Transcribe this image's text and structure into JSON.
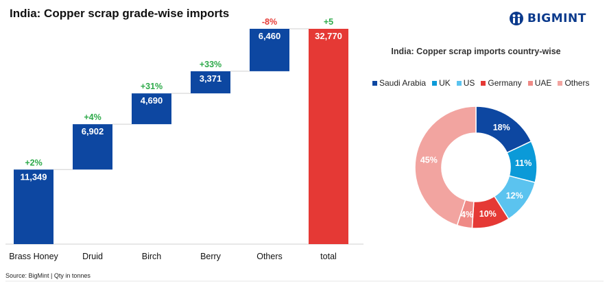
{
  "title": "India: Copper scrap grade-wise imports",
  "logo": {
    "text": "BIGMINT",
    "icon": "bigmint-logo-icon",
    "color": "#0b3a8c"
  },
  "source": "Source: BigMint | Qty in tonnes",
  "chart_data": [
    {
      "type": "bar",
      "subtype": "waterfall",
      "title": "India: Copper scrap grade-wise imports",
      "categories": [
        "Brass Honey",
        "Druid",
        "Birch",
        "Berry",
        "Others",
        "total"
      ],
      "values": [
        11349,
        6902,
        4690,
        3371,
        6460,
        32770
      ],
      "value_labels": [
        "11,349",
        "6,902",
        "4,690",
        "3,371",
        "6,460",
        "32,770"
      ],
      "change_labels": [
        "+2%",
        "+4%",
        "+31%",
        "+33%",
        "-8%",
        "+5"
      ],
      "ylim": [
        0,
        32770
      ],
      "colors": {
        "bar": "#0d47a1",
        "total": "#e53935",
        "positive": "#2eaa4a",
        "negative": "#e53935"
      }
    },
    {
      "type": "pie",
      "subtype": "donut",
      "title": "India: Copper scrap imports country-wise",
      "labels": [
        "Saudi Arabia",
        "UK",
        "US",
        "Germany",
        "UAE",
        "Others"
      ],
      "values": [
        18,
        11,
        12,
        10,
        4,
        45
      ],
      "value_labels": [
        "18%",
        "11%",
        "12%",
        "10%",
        "4%",
        "45%"
      ],
      "colors": [
        "#0d47a1",
        "#0b9ad8",
        "#5bc3ef",
        "#e53935",
        "#ef8a86",
        "#f2a4a0"
      ],
      "legend_position": "top"
    }
  ]
}
